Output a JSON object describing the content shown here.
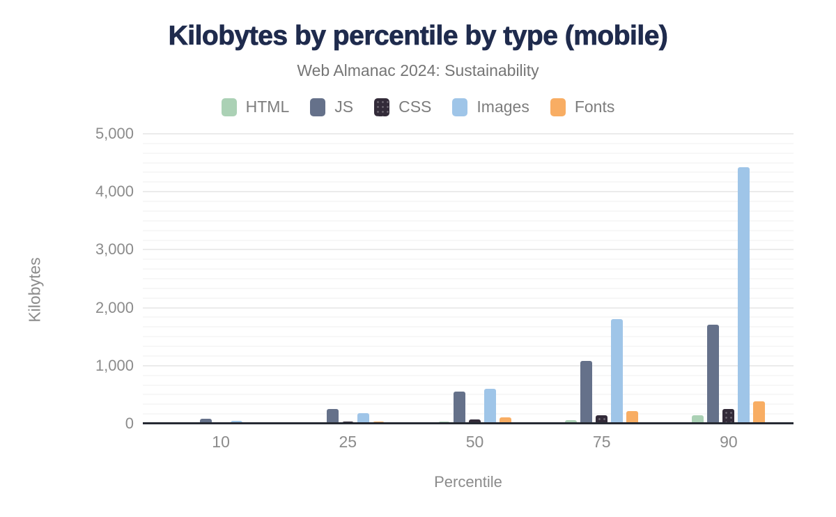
{
  "chart_data": {
    "type": "bar",
    "title": "Kilobytes by percentile by type (mobile)",
    "subtitle": "Web Almanac 2024: Sustainability",
    "xlabel": "Percentile",
    "ylabel": "Kilobytes",
    "categories": [
      "10",
      "25",
      "50",
      "75",
      "90"
    ],
    "series": [
      {
        "name": "HTML",
        "color": "#abd1b5",
        "pattern": "solid",
        "values": [
          6,
          14,
          33,
          62,
          145
        ]
      },
      {
        "name": "JS",
        "color": "#65718a",
        "pattern": "solid",
        "values": [
          90,
          256,
          558,
          1085,
          1712
        ]
      },
      {
        "name": "CSS",
        "color": "#332b39",
        "pattern": "dots",
        "values": [
          11,
          42,
          78,
          150,
          248
        ]
      },
      {
        "name": "Images",
        "color": "#9fc5e8",
        "pattern": "solid",
        "values": [
          52,
          182,
          606,
          1805,
          4423
        ]
      },
      {
        "name": "Fonts",
        "color": "#f8ad63",
        "pattern": "solid",
        "values": [
          0,
          38,
          114,
          221,
          390
        ]
      }
    ],
    "ylim": [
      0,
      5000
    ],
    "yticks": [
      0,
      1000,
      2000,
      3000,
      4000,
      5000
    ],
    "ytick_labels": [
      "0",
      "1,000",
      "2,000",
      "3,000",
      "4,000",
      "5,000"
    ],
    "minor_divisions_per_major": 6,
    "grid": "horizontal",
    "legend_position": "top",
    "colors": {
      "title": "#1f2b4d",
      "subtitle_text": "#757575",
      "axis_text": "#8b8b8b",
      "legend_text": "#7d7d7d",
      "axis_line": "#262a33",
      "gridline_major": "#ebebeb",
      "gridline_minor": "#f7f7f7",
      "background": "#ffffff"
    }
  }
}
